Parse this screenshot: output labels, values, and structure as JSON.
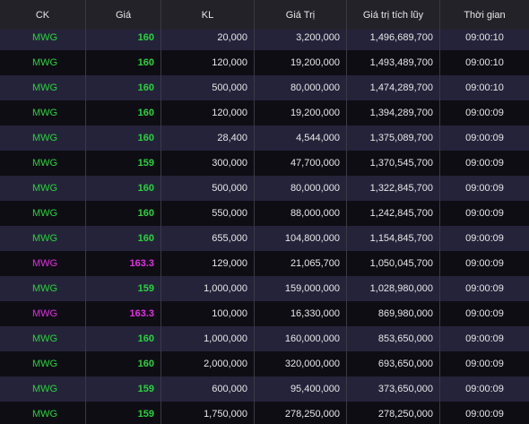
{
  "colors": {
    "up": "#27d43c",
    "ceiling": "#e32ee3",
    "header_bg": "#232228",
    "row_odd_bg": "#25233a",
    "row_even_bg": "#0e0d14"
  },
  "header": [
    "CK",
    "Giá",
    "KL",
    "Giá Trị",
    "Giá trị tích lũy",
    "Thời gian"
  ],
  "rows": [
    {
      "ck": "MWG",
      "gia": "160",
      "kl": "20,000",
      "gia_tri": "3,200,000",
      "tich_luy": "1,496,689,700",
      "thoi_gian": "09:00:10",
      "color": "up"
    },
    {
      "ck": "MWG",
      "gia": "160",
      "kl": "120,000",
      "gia_tri": "19,200,000",
      "tich_luy": "1,493,489,700",
      "thoi_gian": "09:00:10",
      "color": "up"
    },
    {
      "ck": "MWG",
      "gia": "160",
      "kl": "500,000",
      "gia_tri": "80,000,000",
      "tich_luy": "1,474,289,700",
      "thoi_gian": "09:00:10",
      "color": "up"
    },
    {
      "ck": "MWG",
      "gia": "160",
      "kl": "120,000",
      "gia_tri": "19,200,000",
      "tich_luy": "1,394,289,700",
      "thoi_gian": "09:00:09",
      "color": "up"
    },
    {
      "ck": "MWG",
      "gia": "160",
      "kl": "28,400",
      "gia_tri": "4,544,000",
      "tich_luy": "1,375,089,700",
      "thoi_gian": "09:00:09",
      "color": "up"
    },
    {
      "ck": "MWG",
      "gia": "159",
      "kl": "300,000",
      "gia_tri": "47,700,000",
      "tich_luy": "1,370,545,700",
      "thoi_gian": "09:00:09",
      "color": "up"
    },
    {
      "ck": "MWG",
      "gia": "160",
      "kl": "500,000",
      "gia_tri": "80,000,000",
      "tich_luy": "1,322,845,700",
      "thoi_gian": "09:00:09",
      "color": "up"
    },
    {
      "ck": "MWG",
      "gia": "160",
      "kl": "550,000",
      "gia_tri": "88,000,000",
      "tich_luy": "1,242,845,700",
      "thoi_gian": "09:00:09",
      "color": "up"
    },
    {
      "ck": "MWG",
      "gia": "160",
      "kl": "655,000",
      "gia_tri": "104,800,000",
      "tich_luy": "1,154,845,700",
      "thoi_gian": "09:00:09",
      "color": "up"
    },
    {
      "ck": "MWG",
      "gia": "163.3",
      "kl": "129,000",
      "gia_tri": "21,065,700",
      "tich_luy": "1,050,045,700",
      "thoi_gian": "09:00:09",
      "color": "ceiling"
    },
    {
      "ck": "MWG",
      "gia": "159",
      "kl": "1,000,000",
      "gia_tri": "159,000,000",
      "tich_luy": "1,028,980,000",
      "thoi_gian": "09:00:09",
      "color": "up"
    },
    {
      "ck": "MWG",
      "gia": "163.3",
      "kl": "100,000",
      "gia_tri": "16,330,000",
      "tich_luy": "869,980,000",
      "thoi_gian": "09:00:09",
      "color": "ceiling"
    },
    {
      "ck": "MWG",
      "gia": "160",
      "kl": "1,000,000",
      "gia_tri": "160,000,000",
      "tich_luy": "853,650,000",
      "thoi_gian": "09:00:09",
      "color": "up"
    },
    {
      "ck": "MWG",
      "gia": "160",
      "kl": "2,000,000",
      "gia_tri": "320,000,000",
      "tich_luy": "693,650,000",
      "thoi_gian": "09:00:09",
      "color": "up"
    },
    {
      "ck": "MWG",
      "gia": "159",
      "kl": "600,000",
      "gia_tri": "95,400,000",
      "tich_luy": "373,650,000",
      "thoi_gian": "09:00:09",
      "color": "up"
    },
    {
      "ck": "MWG",
      "gia": "159",
      "kl": "1,750,000",
      "gia_tri": "278,250,000",
      "tich_luy": "278,250,000",
      "thoi_gian": "09:00:09",
      "color": "up"
    }
  ]
}
